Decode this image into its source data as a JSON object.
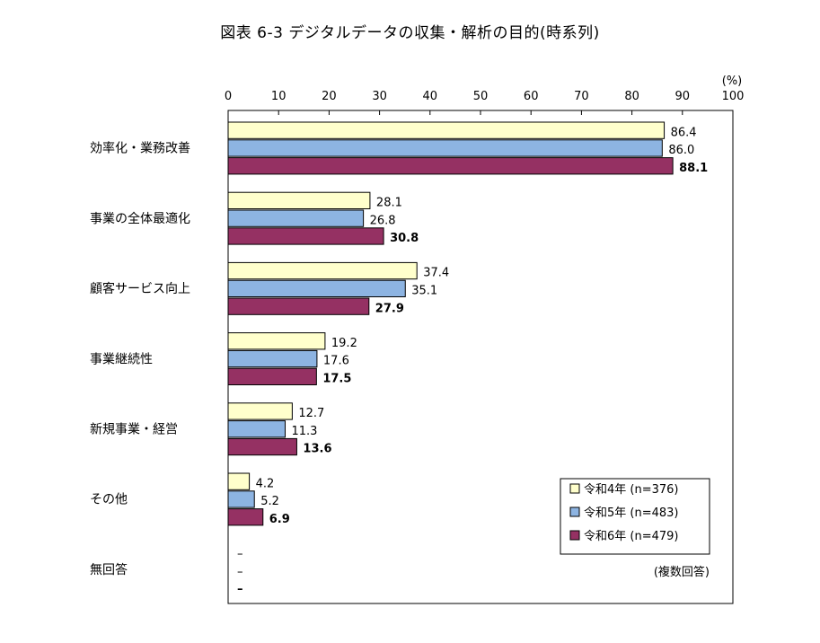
{
  "chart_data": {
    "type": "bar",
    "orientation": "horizontal",
    "title": "図表 6-3 デジタルデータの収集・解析の目的(時系列)",
    "unit_label": "(%)",
    "note": "(複数回答)",
    "xlim": [
      0,
      100
    ],
    "x_ticks": [
      "0",
      "10",
      "20",
      "30",
      "40",
      "50",
      "60",
      "70",
      "80",
      "90",
      "100"
    ],
    "categories": [
      "効率化・業務改善",
      "事業の全体最適化",
      "顧客サービス向上",
      "事業継続性",
      "新規事業・経営",
      "その他",
      "無回答"
    ],
    "series": [
      {
        "name": "令和4年 (n=376)",
        "color": "#ffffcc",
        "values": [
          86.4,
          28.1,
          37.4,
          19.2,
          12.7,
          4.2,
          null
        ],
        "labels": [
          "86.4",
          "28.1",
          "37.4",
          "19.2",
          "12.7",
          "4.2",
          "–"
        ]
      },
      {
        "name": "令和5年 (n=483)",
        "color": "#8db4e2",
        "values": [
          86.0,
          26.8,
          35.1,
          17.6,
          11.3,
          5.2,
          null
        ],
        "labels": [
          "86.0",
          "26.8",
          "35.1",
          "17.6",
          "11.3",
          "5.2",
          "–"
        ]
      },
      {
        "name": "令和6年 (n=479)",
        "color": "#953163",
        "values": [
          88.1,
          30.8,
          27.9,
          17.5,
          13.6,
          6.9,
          null
        ],
        "labels": [
          "88.1",
          "30.8",
          "27.9",
          "17.5",
          "13.6",
          "6.9",
          "–"
        ]
      }
    ],
    "legend_position": "bottom-right",
    "grid": false
  }
}
